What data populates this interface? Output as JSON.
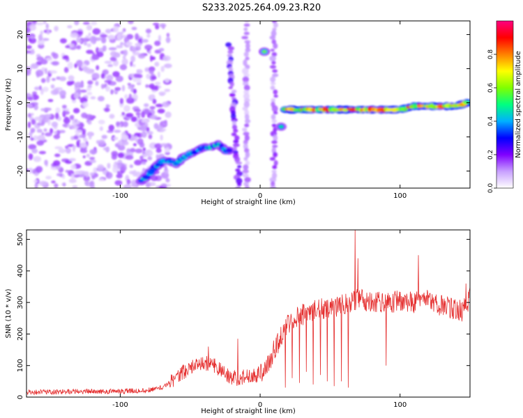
{
  "title": "S233.2025.264.09.23.R20",
  "colors": {
    "signal": "#e53030",
    "axis": "#000000",
    "background": "#ffffff"
  },
  "chart_data": [
    {
      "type": "heatmap",
      "xlabel": "Height of straight line (km)",
      "ylabel": "Frequency (Hz)",
      "xlim": [
        -167,
        150
      ],
      "ylim": [
        -25,
        24
      ],
      "x_ticks": [
        {
          "value": -100,
          "label": "-100"
        },
        {
          "value": 0,
          "label": "0"
        },
        {
          "value": 100,
          "label": "100"
        }
      ],
      "y_ticks": [
        {
          "value": -20,
          "label": "-20"
        },
        {
          "value": -10,
          "label": "-10"
        },
        {
          "value": 0,
          "label": "0"
        },
        {
          "value": 10,
          "label": "10"
        },
        {
          "value": 20,
          "label": "20"
        }
      ],
      "colorbar": {
        "label": "Normalized spectral amplitude",
        "range": [
          0,
          1
        ],
        "colormap": [
          "#ffffff",
          "#c8a0ff",
          "#8000ff",
          "#0000ff",
          "#00b0ff",
          "#00ff80",
          "#80ff00",
          "#ffff00",
          "#ff8000",
          "#ff0000",
          "#ff0080"
        ],
        "ticks": [
          {
            "value": 0.0,
            "label": "0.0"
          },
          {
            "value": 0.2,
            "label": "0.2"
          },
          {
            "value": 0.4,
            "label": "0.4"
          },
          {
            "value": 0.6,
            "label": "0.6"
          },
          {
            "value": 0.8,
            "label": "0.8"
          }
        ]
      },
      "features": [
        {
          "kind": "noise-field",
          "x_range": [
            -167,
            -65
          ],
          "y_range": [
            -25,
            24
          ],
          "amplitude": 0.15
        },
        {
          "kind": "track",
          "points": [
            [
              -85,
              -23
            ],
            [
              -80,
              -21
            ],
            [
              -75,
              -19
            ],
            [
              -70,
              -17
            ],
            [
              -65,
              -17
            ],
            [
              -60,
              -18
            ],
            [
              -55,
              -16
            ],
            [
              -50,
              -15
            ],
            [
              -45,
              -14
            ],
            [
              -40,
              -13
            ],
            [
              -35,
              -13
            ],
            [
              -30,
              -12
            ],
            [
              -25,
              -14
            ],
            [
              -22,
              -14
            ]
          ],
          "amplitude": 0.45
        },
        {
          "kind": "band",
          "points": [
            [
              -22,
              17
            ],
            [
              -15,
              -25
            ]
          ],
          "amplitude": 0.2
        },
        {
          "kind": "band",
          "points": [
            [
              -10,
              24
            ],
            [
              -10,
              -25
            ]
          ],
          "amplitude": 0.12
        },
        {
          "kind": "band",
          "points": [
            [
              10,
              24
            ],
            [
              10,
              -25
            ]
          ],
          "amplitude": 0.15
        },
        {
          "kind": "spot",
          "x": 3,
          "y": 15,
          "amplitude": 0.6
        },
        {
          "kind": "spot",
          "x": 15,
          "y": -7,
          "amplitude": 0.5
        },
        {
          "kind": "track",
          "points": [
            [
              18,
              -2
            ],
            [
              30,
              -2
            ],
            [
              40,
              -2
            ],
            [
              50,
              -2
            ],
            [
              60,
              -2
            ],
            [
              70,
              -2
            ],
            [
              80,
              -2
            ],
            [
              90,
              -2
            ],
            [
              100,
              -2
            ],
            [
              110,
              -1
            ],
            [
              120,
              -1
            ],
            [
              130,
              -1
            ],
            [
              140,
              -1
            ],
            [
              148,
              0
            ]
          ],
          "amplitude": 0.9
        }
      ]
    },
    {
      "type": "line",
      "xlabel": "Height of straight line (km)",
      "ylabel": "SNR (10 * v/v)",
      "xlim": [
        -167,
        150
      ],
      "ylim": [
        0,
        530
      ],
      "x_ticks": [
        {
          "value": -100,
          "label": "-100"
        },
        {
          "value": 0,
          "label": "0"
        },
        {
          "value": 100,
          "label": "100"
        }
      ],
      "y_ticks": [
        {
          "value": 0,
          "label": "0"
        },
        {
          "value": 100,
          "label": "100"
        },
        {
          "value": 200,
          "label": "200"
        },
        {
          "value": 300,
          "label": "300"
        },
        {
          "value": 400,
          "label": "400"
        },
        {
          "value": 500,
          "label": "500"
        }
      ],
      "envelope": {
        "x": [
          -167,
          -140,
          -120,
          -100,
          -80,
          -70,
          -65,
          -60,
          -55,
          -50,
          -45,
          -40,
          -35,
          -30,
          -25,
          -20,
          -15,
          -10,
          -5,
          0,
          5,
          10,
          15,
          20,
          25,
          30,
          35,
          40,
          45,
          50,
          55,
          60,
          65,
          70,
          75,
          80,
          85,
          90,
          95,
          100,
          105,
          110,
          115,
          120,
          125,
          130,
          135,
          140,
          145,
          150
        ],
        "y": [
          15,
          17,
          18,
          18,
          22,
          30,
          45,
          65,
          80,
          90,
          100,
          105,
          110,
          90,
          70,
          60,
          60,
          65,
          70,
          75,
          100,
          150,
          190,
          230,
          250,
          260,
          270,
          275,
          280,
          285,
          290,
          295,
          300,
          310,
          305,
          300,
          300,
          295,
          300,
          310,
          305,
          300,
          320,
          310,
          300,
          290,
          285,
          280,
          270,
          320
        ]
      },
      "noise_amplitude": [
        {
          "x": [
            -167,
            -65
          ],
          "value": 8
        },
        {
          "x": [
            -65,
            0
          ],
          "value": 25
        },
        {
          "x": [
            0,
            150
          ],
          "value": 35
        }
      ],
      "spikes": [
        {
          "x": -37,
          "y": 160
        },
        {
          "x": -16,
          "y": 185
        },
        {
          "x": 68,
          "y": 530
        },
        {
          "x": 70,
          "y": 440
        },
        {
          "x": 90,
          "y": 100
        },
        {
          "x": 113,
          "y": 450
        },
        {
          "x": 147,
          "y": 360
        }
      ],
      "dips": [
        {
          "x": 18,
          "y": 30
        },
        {
          "x": 23,
          "y": 60
        },
        {
          "x": 28,
          "y": 45
        },
        {
          "x": 33,
          "y": 80
        },
        {
          "x": 38,
          "y": 40
        },
        {
          "x": 43,
          "y": 70
        },
        {
          "x": 48,
          "y": 50
        },
        {
          "x": 53,
          "y": 35
        },
        {
          "x": 58,
          "y": 50
        },
        {
          "x": 63,
          "y": 30
        }
      ]
    }
  ]
}
